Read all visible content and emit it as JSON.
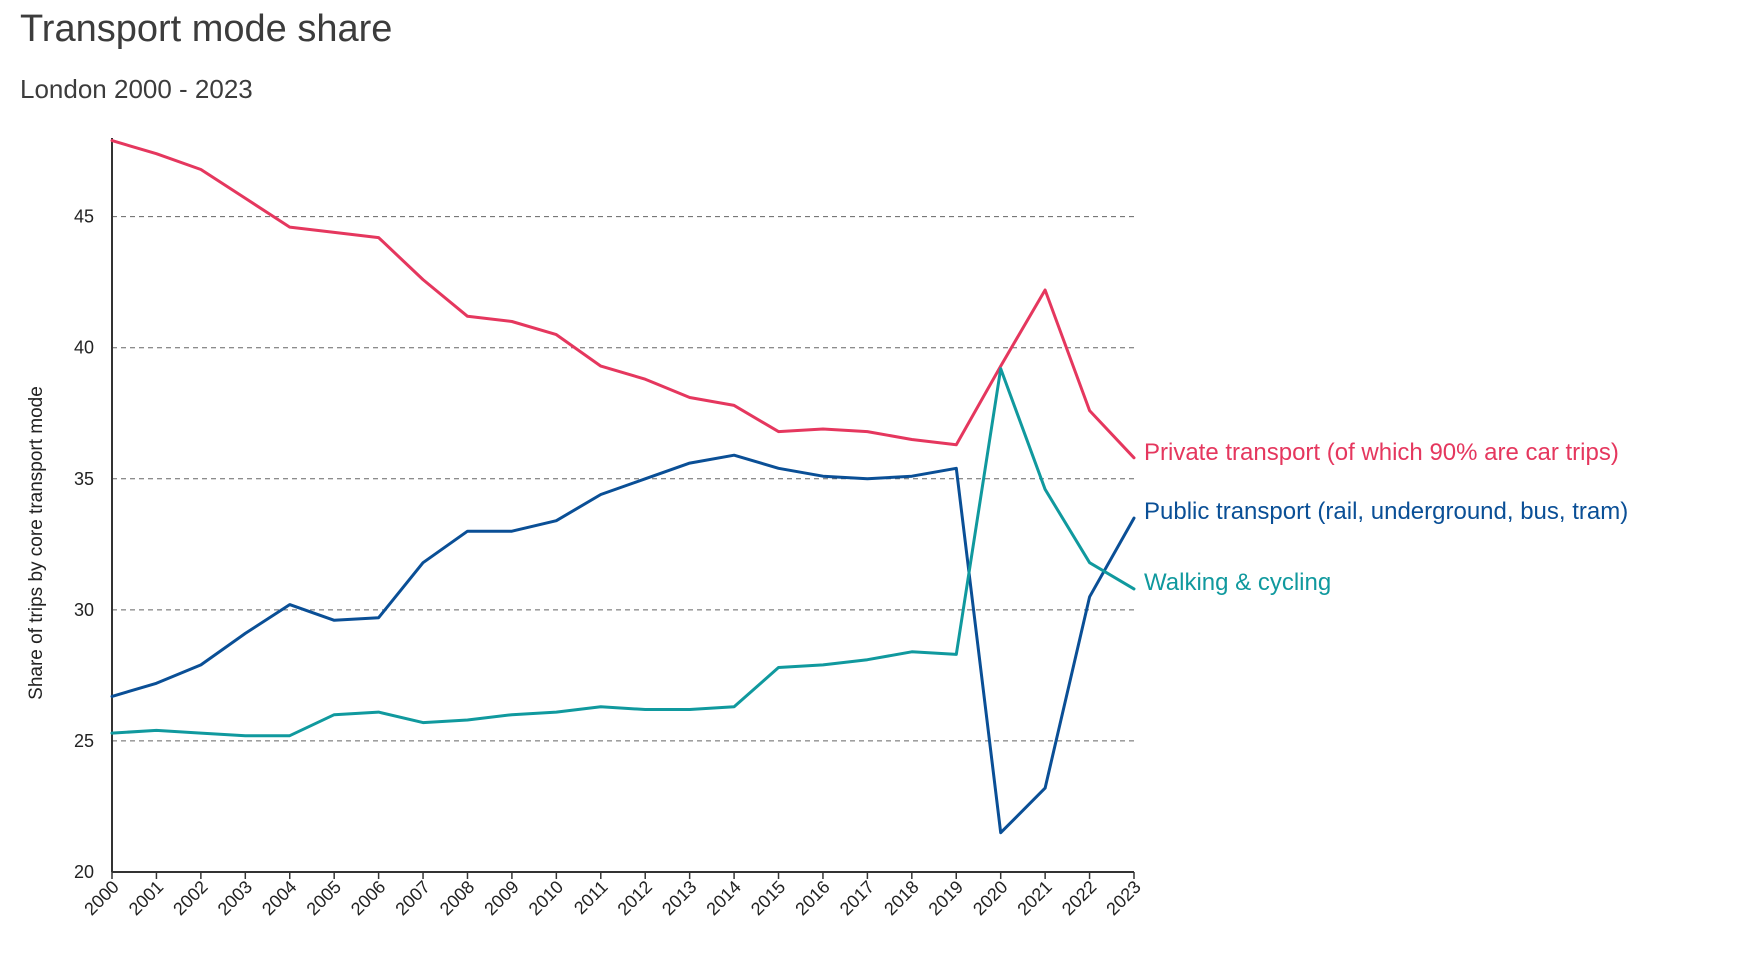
{
  "header": {
    "title": "Transport mode share",
    "subtitle": "London 2000 - 2023"
  },
  "chart_data": {
    "type": "line",
    "title": "Transport mode share",
    "subtitle": "London 2000 - 2023",
    "xlabel": "",
    "ylabel": "Share of trips by core transport mode",
    "x": [
      "2000",
      "2001",
      "2002",
      "2003",
      "2004",
      "2005",
      "2006",
      "2007",
      "2008",
      "2009",
      "2010",
      "2011",
      "2012",
      "2013",
      "2014",
      "2015",
      "2016",
      "2017",
      "2018",
      "2019",
      "2020",
      "2021",
      "2022",
      "2023"
    ],
    "ylim": [
      20,
      48
    ],
    "yticks": [
      20,
      25,
      30,
      35,
      40,
      45
    ],
    "grid": true,
    "series": [
      {
        "name": "Private transport (of which 90% are car trips)",
        "color": "#e5375e",
        "values": [
          47.9,
          47.4,
          46.8,
          45.7,
          44.6,
          44.4,
          44.2,
          42.6,
          41.2,
          41.0,
          40.5,
          39.3,
          38.8,
          38.1,
          37.8,
          36.8,
          36.9,
          36.8,
          36.5,
          36.3,
          39.3,
          42.2,
          37.6,
          35.8
        ]
      },
      {
        "name": "Public transport (rail, underground, bus, tram)",
        "color": "#0a4f96",
        "values": [
          26.7,
          27.2,
          27.9,
          29.1,
          30.2,
          29.6,
          29.7,
          31.8,
          33.0,
          33.0,
          33.4,
          34.4,
          35.0,
          35.6,
          35.9,
          35.4,
          35.1,
          35.0,
          35.1,
          35.4,
          21.5,
          23.2,
          30.5,
          33.5
        ]
      },
      {
        "name": "Walking & cycling",
        "color": "#10999e",
        "values": [
          25.3,
          25.4,
          25.3,
          25.2,
          25.2,
          26.0,
          26.1,
          25.7,
          25.8,
          26.0,
          26.1,
          26.3,
          26.2,
          26.2,
          26.3,
          27.8,
          27.9,
          28.1,
          28.4,
          28.3,
          39.2,
          34.6,
          31.8,
          30.8
        ]
      }
    ]
  }
}
